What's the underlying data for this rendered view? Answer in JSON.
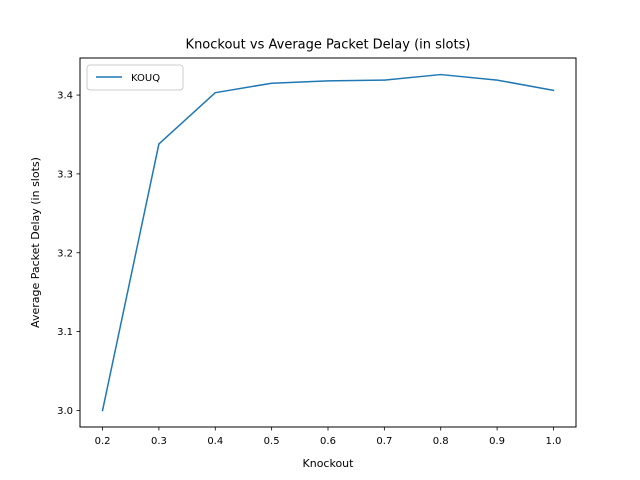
{
  "chart_data": {
    "type": "line",
    "title": "Knockout vs Average Packet Delay (in slots)",
    "xlabel": "Knockout",
    "ylabel": "Average Packet Delay (in slots)",
    "x": [
      0.2,
      0.3,
      0.4,
      0.5,
      0.6,
      0.7,
      0.8,
      0.9,
      1.0
    ],
    "series": [
      {
        "name": "KOUQ",
        "color": "#1f77b4",
        "values": [
          3.0,
          3.338,
          3.403,
          3.415,
          3.418,
          3.419,
          3.426,
          3.419,
          3.406
        ]
      }
    ],
    "xlim": [
      0.16,
      1.04
    ],
    "ylim": [
      2.979,
      3.447
    ],
    "xticks": [
      "0.2",
      "0.3",
      "0.4",
      "0.5",
      "0.6",
      "0.7",
      "0.8",
      "0.9",
      "1.0"
    ],
    "yticks": [
      "3.0",
      "3.1",
      "3.2",
      "3.3",
      "3.4"
    ],
    "grid": false,
    "legend_position": "top-left"
  }
}
